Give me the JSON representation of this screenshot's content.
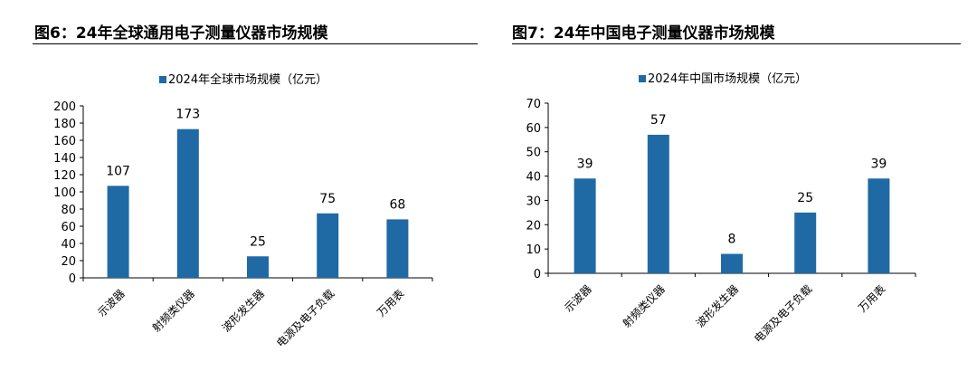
{
  "figures": [
    {
      "title": "图6：24年全球通用电子测量仪器市场规模",
      "legend": "2024年全球市场规模（亿元）"
    },
    {
      "title": "图7：24年中国电子测量仪器市场规模",
      "legend": "2024年中国市场规模（亿元）"
    }
  ],
  "colors": {
    "bar": "#1F6AA5",
    "axis": "#000000"
  },
  "chart_data": [
    {
      "type": "bar",
      "title": "",
      "categories": [
        "示波器",
        "射频类仪器",
        "波形发生器",
        "电源及电子负载",
        "万用表"
      ],
      "series": [
        {
          "name": "2024年全球市场规模（亿元）",
          "values": [
            107,
            173,
            25,
            75,
            68
          ]
        }
      ],
      "ylim": [
        0,
        200
      ],
      "yticks": [
        0,
        20,
        40,
        60,
        80,
        100,
        120,
        140,
        160,
        180,
        200
      ],
      "legend_position": "top",
      "grid": false
    },
    {
      "type": "bar",
      "title": "",
      "categories": [
        "示波器",
        "射频类仪器",
        "波形发生器",
        "电源及电子负载",
        "万用表"
      ],
      "series": [
        {
          "name": "2024年中国市场规模（亿元）",
          "values": [
            39,
            57,
            8,
            25,
            39
          ]
        }
      ],
      "ylim": [
        0,
        70
      ],
      "yticks": [
        0,
        10,
        20,
        30,
        40,
        50,
        60,
        70
      ],
      "legend_position": "top",
      "grid": false
    }
  ]
}
